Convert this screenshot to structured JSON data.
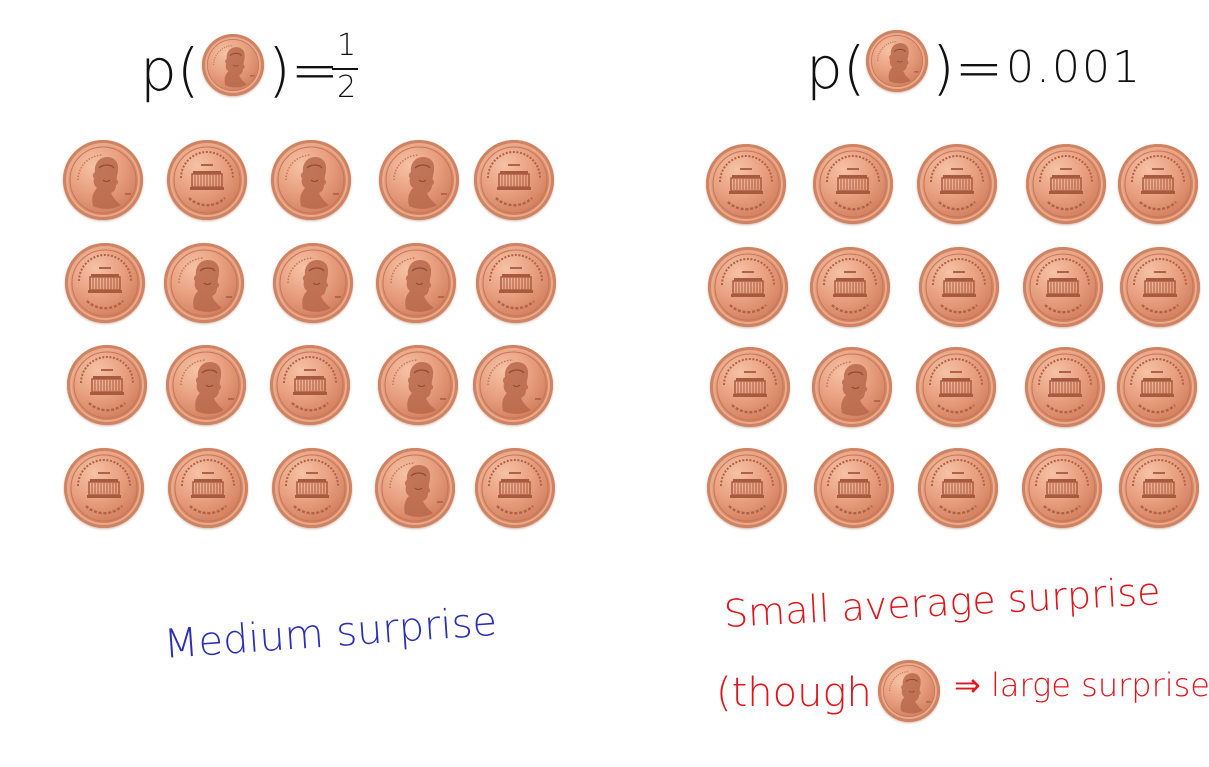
{
  "colors": {
    "ink": "#111111",
    "blue_note": "#2b2fb8",
    "red_note": "#e0141b",
    "coin_base": "#e49c7c"
  },
  "left_panel": {
    "formula_prefix": "p(",
    "formula_suffix": ")=",
    "fraction_numerator": "1",
    "fraction_denominator": "2",
    "formula_coin_icon": "penny-heads-icon",
    "caption": "Medium surprise",
    "heads_probability": 0.5,
    "grid": [
      [
        "heads",
        "tails",
        "heads",
        "heads",
        "tails"
      ],
      [
        "tails",
        "heads",
        "heads",
        "heads",
        "tails"
      ],
      [
        "tails",
        "heads",
        "tails",
        "heads",
        "heads"
      ],
      [
        "tails",
        "tails",
        "tails",
        "heads",
        "tails"
      ]
    ]
  },
  "right_panel": {
    "formula_prefix": "p(",
    "formula_suffix": ")=",
    "formula_value": "0.001",
    "formula_coin_icon": "penny-heads-icon",
    "caption_line1": "Small average surprise",
    "caption_line2_prefix": "(though",
    "caption_line2_suffix": "⇒ large surprise)",
    "heads_probability": 0.001,
    "grid": [
      [
        "tails",
        "tails",
        "tails",
        "tails",
        "tails"
      ],
      [
        "tails",
        "tails",
        "tails",
        "tails",
        "tails"
      ],
      [
        "tails",
        "heads",
        "tails",
        "tails",
        "tails"
      ],
      [
        "tails",
        "tails",
        "tails",
        "tails",
        "tails"
      ]
    ]
  },
  "coin_faces": {
    "heads": "penny-heads-icon",
    "tails": "penny-tails-icon"
  }
}
